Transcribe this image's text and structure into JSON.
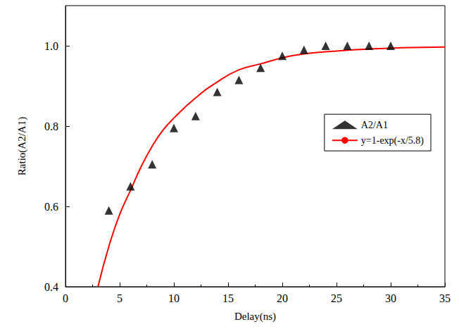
{
  "chart_data": {
    "type": "scatter",
    "xlabel": "Delay(ns)",
    "ylabel": "Ratio(A2/A1)",
    "xlim": [
      0,
      35
    ],
    "xticks": [
      0,
      5,
      10,
      15,
      20,
      25,
      30,
      35
    ],
    "ylim": [
      0.4,
      1.1
    ],
    "yticks": [
      0.4,
      0.6,
      0.8,
      {
        "value": 1,
        "label": "1.0"
      }
    ],
    "grid": false,
    "legend": "right",
    "series": [
      {
        "name": "A2/A1",
        "type": "scatter",
        "marker": "triangle",
        "color": "#000000",
        "x": [
          4,
          6,
          8,
          10,
          12,
          14,
          16,
          18,
          20,
          22,
          24,
          26,
          28,
          30
        ],
        "values": [
          0.59,
          0.65,
          0.705,
          0.795,
          0.825,
          0.885,
          0.915,
          0.945,
          0.975,
          0.99,
          1.0,
          1.0,
          1.0,
          1.0
        ]
      },
      {
        "name": "y=1-exp(-x/5.8)",
        "type": "line",
        "line_style": "solid",
        "color": "#ff0000",
        "x": [
          3,
          4,
          5,
          6,
          7,
          8,
          9,
          10,
          12,
          14,
          16,
          18,
          20,
          22,
          25,
          28,
          31,
          35
        ],
        "values": [
          0.4,
          0.5,
          0.58,
          0.64,
          0.7,
          0.75,
          0.79,
          0.82,
          0.87,
          0.91,
          0.94,
          0.955,
          0.97,
          0.98,
          0.987,
          0.992,
          0.995,
          0.997
        ]
      }
    ]
  }
}
